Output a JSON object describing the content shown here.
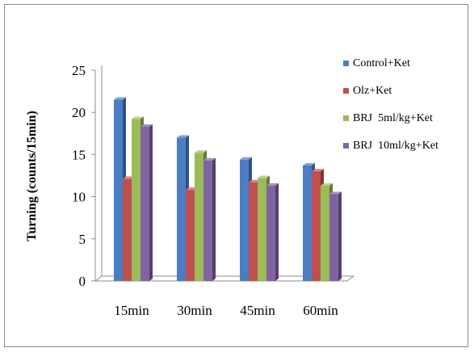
{
  "chart_data": {
    "type": "bar",
    "style": "3d-clustered-column",
    "categories": [
      "15min",
      "30min",
      "45min",
      "60min"
    ],
    "series": [
      {
        "name": "Control+Ket",
        "color": "#4a7dc4",
        "values": [
          21.5,
          17,
          14.4,
          13.7
        ]
      },
      {
        "name": "Olz+Ket",
        "color": "#c0504d",
        "values": [
          12.1,
          10.8,
          11.7,
          13.0
        ]
      },
      {
        "name": "BRJ  5ml/kg+Ket",
        "color": "#9bbb59",
        "values": [
          19.2,
          15.2,
          12.2,
          11.3
        ]
      },
      {
        "name": "BRJ  10ml/kg+Ket",
        "color": "#8064a2",
        "values": [
          18.3,
          14.3,
          11.3,
          10.3
        ]
      }
    ],
    "title": "",
    "xlabel": "",
    "ylabel": "Turning (counts/15min)",
    "ylim": [
      0,
      25
    ],
    "yticks": [
      0,
      5,
      10,
      15,
      20,
      25
    ],
    "grid": false,
    "legend_position": "right"
  }
}
